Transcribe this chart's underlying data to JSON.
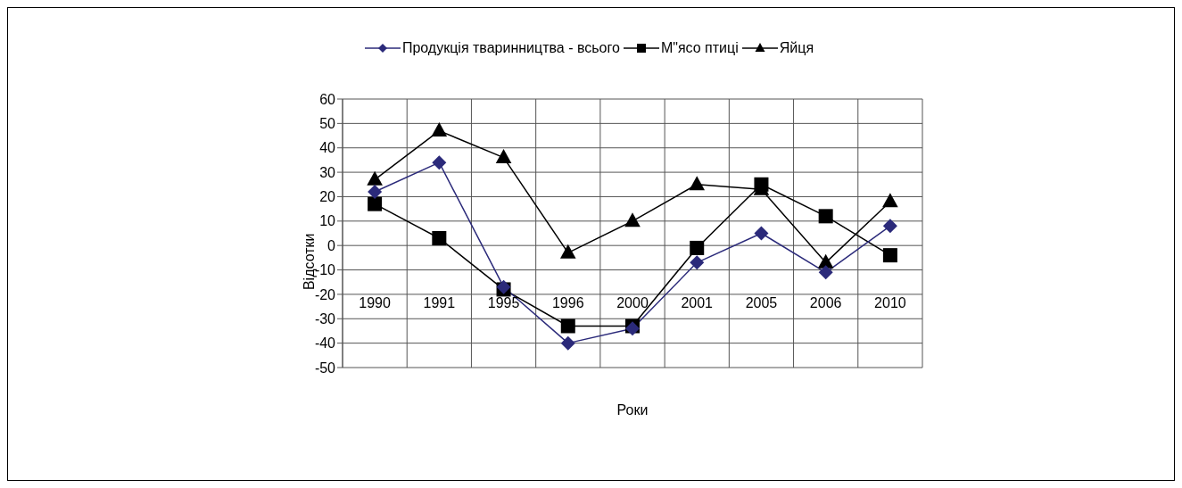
{
  "chart_data": {
    "type": "line",
    "xlabel": "Роки",
    "ylabel": "Відсотки",
    "categories": [
      "1990",
      "1991",
      "1995",
      "1996",
      "2000",
      "2001",
      "2005",
      "2006",
      "2010"
    ],
    "series": [
      {
        "name": "Продукція тваринництва - всього",
        "color": "#2b2a7a",
        "marker": "diamond",
        "values": [
          22,
          34,
          -17,
          -40,
          -34,
          -7,
          5,
          -11,
          8
        ]
      },
      {
        "name": "М\"ясо птиці",
        "color": "#000000",
        "marker": "square",
        "values": [
          17,
          3,
          -18,
          -33,
          -33,
          -1,
          25,
          12,
          -4
        ]
      },
      {
        "name": "Яйця",
        "color": "#000000",
        "marker": "triangle",
        "values": [
          27,
          47,
          36,
          -3,
          10,
          25,
          23,
          -7,
          18
        ]
      }
    ],
    "ylim": [
      -50,
      60
    ],
    "yticks": [
      -50,
      -40,
      -30,
      -20,
      -10,
      0,
      10,
      20,
      30,
      40,
      50,
      60
    ],
    "grid": true,
    "legend": "top"
  }
}
